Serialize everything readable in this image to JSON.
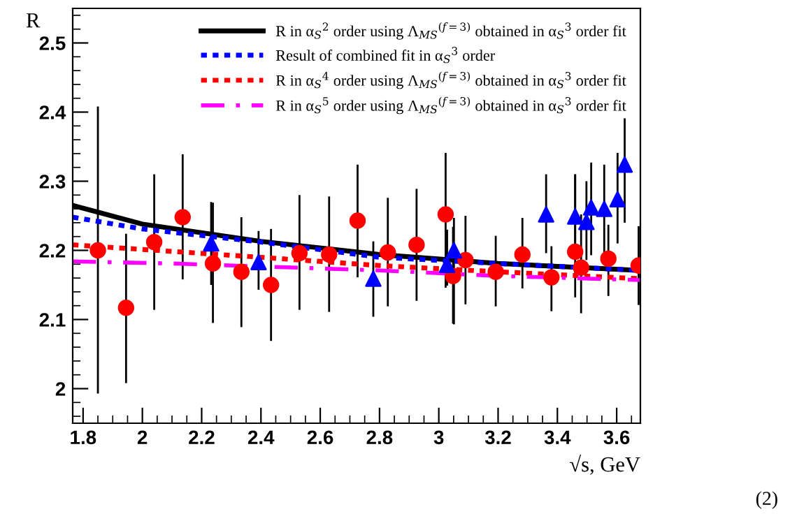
{
  "chart_data": {
    "type": "scatter",
    "xlabel": "√s, GeV",
    "ylabel": "R",
    "xlim": [
      1.765,
      3.68
    ],
    "ylim": [
      1.95,
      2.55
    ],
    "xticks": [
      1.8,
      2,
      2.2,
      2.4,
      2.6,
      2.8,
      3,
      3.2,
      3.4,
      3.6
    ],
    "yticks": [
      2,
      2.1,
      2.2,
      2.3,
      2.4,
      2.5
    ],
    "grid": false,
    "legend": "top right",
    "annotations": [
      "(2)"
    ],
    "series": [
      {
        "type": "scatter",
        "marker": "circle",
        "color": "#ff0000",
        "x": [
          1.85,
          1.945,
          2.04,
          2.136,
          2.238,
          2.334,
          2.434,
          2.53,
          2.63,
          2.726,
          2.828,
          2.925,
          3.023,
          3.048,
          3.09,
          3.192,
          3.282,
          3.38,
          3.46,
          3.48,
          3.572,
          3.674
        ],
        "values": [
          2.2,
          2.117,
          2.212,
          2.248,
          2.181,
          2.169,
          2.15,
          2.196,
          2.194,
          2.243,
          2.197,
          2.208,
          2.252,
          2.163,
          2.186,
          2.169,
          2.194,
          2.161,
          2.198,
          2.175,
          2.188,
          2.178
        ],
        "errors": [
          [
            1.993,
            2.408
          ],
          [
            2.008,
            2.224
          ],
          [
            2.114,
            2.31
          ],
          [
            2.158,
            2.339
          ],
          [
            2.095,
            2.269
          ],
          [
            2.089,
            2.248
          ],
          [
            2.069,
            2.231
          ],
          [
            2.114,
            2.28
          ],
          [
            2.111,
            2.278
          ],
          [
            2.161,
            2.324
          ],
          [
            2.119,
            2.276
          ],
          [
            2.127,
            2.289
          ],
          [
            2.146,
            2.341
          ],
          [
            2.094,
            2.234
          ],
          [
            2.122,
            2.25
          ],
          [
            2.119,
            2.221
          ],
          [
            2.145,
            2.247
          ],
          [
            2.112,
            2.206
          ],
          [
            2.132,
            2.31
          ],
          [
            2.109,
            2.252
          ],
          [
            2.134,
            2.237
          ],
          [
            2.121,
            2.235
          ]
        ]
      },
      {
        "type": "scatter",
        "marker": "triangle",
        "color": "#0000ff",
        "x": [
          2.232,
          2.392,
          2.779,
          3.028,
          3.051,
          3.362,
          3.46,
          3.498,
          3.514,
          3.558,
          3.603,
          3.627
        ],
        "values": [
          2.21,
          2.183,
          2.159,
          2.179,
          2.2,
          2.252,
          2.249,
          2.241,
          2.262,
          2.26,
          2.274,
          2.324
        ],
        "errors": [
          [
            2.15,
            2.27
          ],
          [
            2.143,
            2.228
          ],
          [
            2.104,
            2.213
          ],
          [
            2.149,
            2.23
          ],
          [
            2.093,
            2.247
          ],
          [
            2.196,
            2.31
          ],
          [
            2.19,
            2.31
          ],
          [
            2.186,
            2.3
          ],
          [
            2.193,
            2.327
          ],
          [
            2.194,
            2.324
          ],
          [
            2.21,
            2.341
          ],
          [
            2.24,
            2.391
          ]
        ]
      },
      {
        "type": "line",
        "name": "R in α$_{S}$$^{2}$ order using Λ$_{MS}$$^{(f=3)}$ obtained in α$_{S}$$^{3}$ order fit",
        "color": "#000000",
        "line_style": "solid",
        "marker": "none",
        "x": [
          1.765,
          2.0,
          2.4,
          2.8,
          3.2,
          3.68
        ],
        "values": [
          2.265,
          2.238,
          2.213,
          2.194,
          2.181,
          2.171
        ]
      },
      {
        "type": "line",
        "name": "Result of combined fit in α$_{S}$$^{3}$ order",
        "color": "#0000ff",
        "line_style": "dotted",
        "marker": "none",
        "x": [
          1.765,
          2.0,
          2.4,
          2.8,
          3.2,
          3.68
        ],
        "values": [
          2.248,
          2.231,
          2.212,
          2.19,
          2.181,
          2.171
        ]
      },
      {
        "type": "line",
        "name": "R in α$_{S}$$^{4}$ order using Λ$_{MS}$$^{(f=3)}$ obtained in α$_{S}$$^{3}$ order fit",
        "color": "#ff0000",
        "line_style": "dotted",
        "marker": "none",
        "x": [
          1.765,
          2.4,
          2.8,
          3.2,
          3.68
        ],
        "values": [
          2.208,
          2.19,
          2.178,
          2.169,
          2.159
        ]
      },
      {
        "type": "line",
        "name": "R in α$_{S}$$^{5}$ order using Λ$_{MS}$$^{(f=3)}$ obtained in α$_{S}$$^{3}$ order fit",
        "color": "#ff00ff",
        "line_style": "dashed",
        "marker": "none",
        "x": [
          1.765,
          2.1,
          2.8,
          3.2,
          3.68
        ],
        "values": [
          2.184,
          2.181,
          2.171,
          2.163,
          2.157
        ]
      }
    ]
  }
}
